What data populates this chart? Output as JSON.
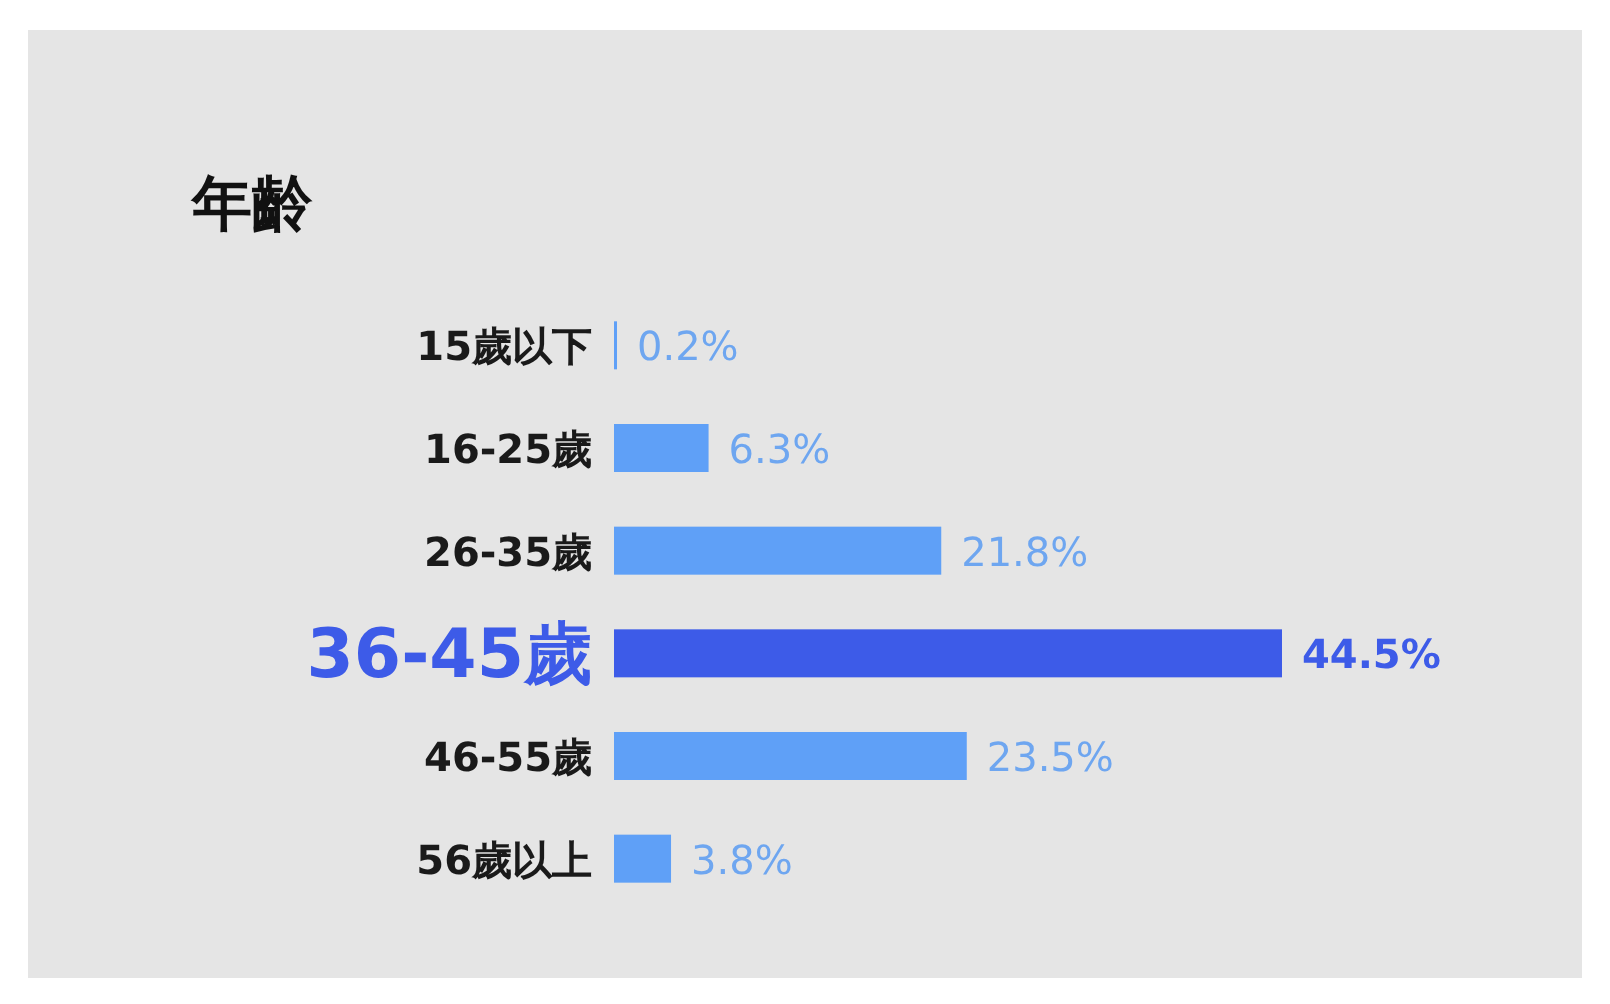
{
  "chart_data": {
    "type": "bar",
    "orientation": "horizontal",
    "title": "年齡",
    "categories": [
      "15歲以下",
      "16-25歲",
      "26-35歲",
      "36-45歲",
      "46-55歲",
      "56歲以上"
    ],
    "values": [
      0.2,
      6.3,
      21.8,
      44.5,
      23.5,
      3.8
    ],
    "colors": [
      "#5fa0f7",
      "#5fa0f7",
      "#5fa0f7",
      "#3d5be8",
      "#5fa0f7",
      "#5fa0f7"
    ],
    "value_labels": [
      "0.2%",
      "6.3%",
      "21.8%",
      "44.5%",
      "23.5%",
      "3.8%"
    ]
  }
}
